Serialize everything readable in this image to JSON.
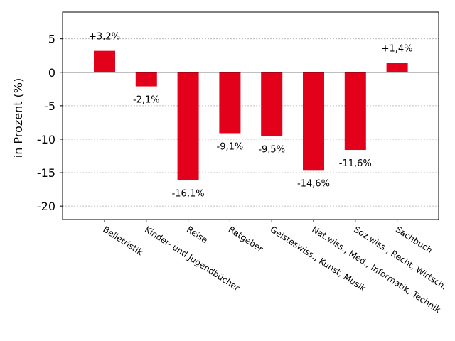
{
  "chart_data": {
    "type": "bar",
    "categories": [
      "Belletristik",
      "Kinder- und Jugendbücher",
      "Reise",
      "Ratgeber",
      "Geisteswiss., Kunst, Musik",
      "Nat.wiss., Med., Informatik, Technik",
      "Soz.wiss., Recht, Wirtsch.",
      "Sachbuch"
    ],
    "values": [
      3.2,
      -2.1,
      -16.1,
      -9.1,
      -9.5,
      -14.6,
      -11.6,
      1.4
    ],
    "data_labels": [
      "+3,2%",
      "-2,1%",
      "-16,1%",
      "-9,1%",
      "-9,5%",
      "-14,6%",
      "-11,6%",
      "+1,4%"
    ],
    "ylabel": "in Prozent (%)",
    "xlabel": "",
    "ylim": [
      -22,
      9
    ],
    "yticks": [
      5,
      0,
      -5,
      -10,
      -15,
      -20
    ],
    "ytick_labels": [
      "5",
      "0",
      "-5",
      "-10",
      "-15",
      "-20"
    ],
    "grid": "horizontal dotted",
    "bar_color": "#e2001a",
    "zero_line_color": "#000000"
  }
}
